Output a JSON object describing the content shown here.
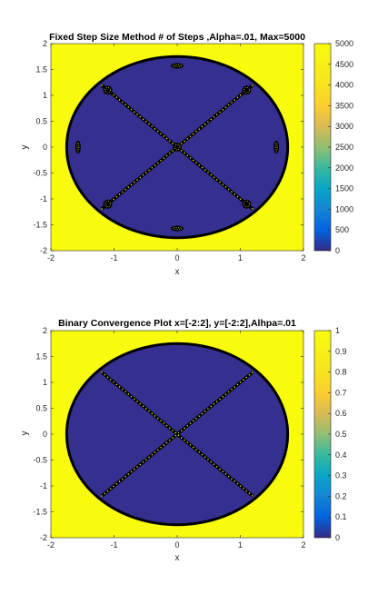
{
  "figure": {
    "background": "#ffffff",
    "fill_color": "#f9fb0e",
    "basin_color": "#35308f",
    "boundary_color": "#000000",
    "dot_color": "#f9fb0e"
  },
  "chart_data": [
    {
      "type": "heatmap",
      "title": "Fixed Step Size Method # of Steps ,Alpha=.01, Max=5000",
      "xlabel": "x",
      "ylabel": "y",
      "xlim": [
        -2,
        2
      ],
      "ylim": [
        -2,
        2
      ],
      "xticks": [
        -2,
        -1,
        0,
        1,
        2
      ],
      "yticks": [
        -2,
        -1.5,
        -1,
        -0.5,
        0,
        0.5,
        1,
        1.5,
        2
      ],
      "colorbar": {
        "limits": [
          0,
          5000
        ],
        "ticks": [
          0,
          500,
          1000,
          1500,
          2000,
          2500,
          3000,
          3500,
          4000,
          4500,
          5000
        ]
      },
      "regions": {
        "inside_ellipse": {
          "value": 0,
          "semi_axis_x": 1.75,
          "semi_axis_y": 1.75
        },
        "outside_ellipse": {
          "value": 5000
        },
        "diagonal_lines": [
          {
            "from": [
              -1.2,
              -1.2
            ],
            "to": [
              1.2,
              1.2
            ]
          },
          {
            "from": [
              -1.2,
              1.2
            ],
            "to": [
              1.2,
              -1.2
            ]
          }
        ],
        "fixed_points": [
          [
            1.1,
            1.1
          ],
          [
            -1.1,
            1.1
          ],
          [
            1.1,
            -1.1
          ],
          [
            -1.1,
            -1.1
          ],
          [
            0,
            0
          ],
          [
            1.57,
            0
          ],
          [
            -1.57,
            0
          ],
          [
            0,
            1.57
          ],
          [
            0,
            -1.57
          ]
        ]
      }
    },
    {
      "type": "heatmap",
      "title": "Binary Convergence Plot x=[-2:2], y=[-2:2],Alhpa=.01",
      "xlabel": "x",
      "ylabel": "y",
      "xlim": [
        -2,
        2
      ],
      "ylim": [
        -2,
        2
      ],
      "xticks": [
        -2,
        -1,
        0,
        1,
        2
      ],
      "yticks": [
        -2,
        -1.5,
        -1,
        -0.5,
        0,
        0.5,
        1,
        1.5,
        2
      ],
      "colorbar": {
        "limits": [
          0,
          1
        ],
        "ticks": [
          0,
          0.1,
          0.2,
          0.3,
          0.4,
          0.5,
          0.6,
          0.7,
          0.8,
          0.9,
          1
        ]
      },
      "regions": {
        "inside_ellipse": {
          "value": 0,
          "semi_axis_x": 1.75,
          "semi_axis_y": 1.75
        },
        "outside_ellipse": {
          "value": 1
        },
        "diagonal_lines": [
          {
            "from": [
              -1.2,
              -1.2
            ],
            "to": [
              1.2,
              1.2
            ]
          },
          {
            "from": [
              -1.2,
              1.2
            ],
            "to": [
              1.2,
              -1.2
            ]
          }
        ]
      }
    }
  ]
}
